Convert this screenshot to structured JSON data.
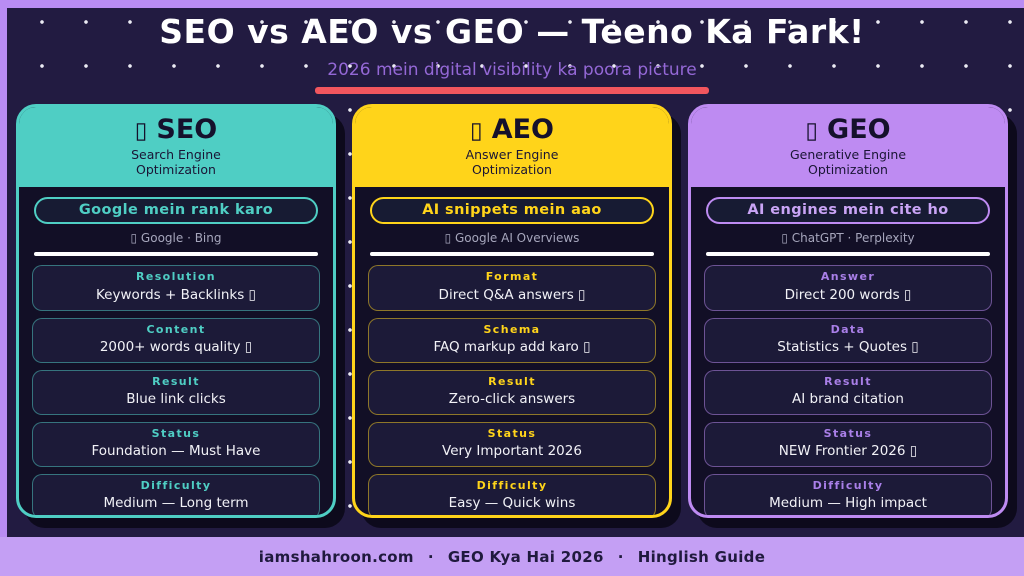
{
  "page": {
    "title": "SEO vs AEO vs GEO — Teeno Ka Fark!",
    "subtitle": "2026 mein digital visibility ka poora picture"
  },
  "footer": {
    "site": "iamshahroon.com",
    "sep": "·",
    "topic": "GEO Kya Hai 2026",
    "tag": "Hinglish Guide"
  },
  "colors": {
    "background": "#221B41",
    "card_body": "#120F26",
    "seo_accent": "#4FCEC4",
    "aeo_accent": "#FFD41A",
    "geo_accent": "#BE8BF2",
    "top_band": "#B98CF3",
    "footer_band": "#C49FF4",
    "subtitle_text": "#9468D6",
    "underline": "#F2565E"
  },
  "cards": [
    {
      "icon": "▯",
      "name": "SEO",
      "subtitle": "Search Engine Optimization",
      "pill": "Google mein rank karo",
      "engines": "▯ Google · Bing",
      "rows": [
        {
          "label": "Resolution",
          "value": "Keywords + Backlinks ▯"
        },
        {
          "label": "Content",
          "value": "2000+ words quality ▯"
        },
        {
          "label": "Result",
          "value": "Blue link clicks"
        },
        {
          "label": "Status",
          "value": "Foundation — Must Have"
        },
        {
          "label": "Difficulty",
          "value": "Medium — Long term"
        }
      ]
    },
    {
      "icon": "▯",
      "name": "AEO",
      "subtitle": "Answer Engine Optimization",
      "pill": "AI snippets mein aao",
      "engines": "▯ Google AI Overviews",
      "rows": [
        {
          "label": "Format",
          "value": "Direct Q&A answers ▯"
        },
        {
          "label": "Schema",
          "value": "FAQ markup add karo ▯"
        },
        {
          "label": "Result",
          "value": "Zero-click answers"
        },
        {
          "label": "Status",
          "value": "Very Important 2026"
        },
        {
          "label": "Difficulty",
          "value": "Easy — Quick wins"
        }
      ]
    },
    {
      "icon": "▯",
      "name": "GEO",
      "subtitle": "Generative Engine Optimization",
      "pill": "AI engines mein cite ho",
      "engines": "▯ ChatGPT · Perplexity",
      "rows": [
        {
          "label": "Answer",
          "value": "Direct 200 words ▯"
        },
        {
          "label": "Data",
          "value": "Statistics + Quotes ▯"
        },
        {
          "label": "Result",
          "value": "AI brand citation"
        },
        {
          "label": "Status",
          "value": "NEW Frontier 2026 ▯"
        },
        {
          "label": "Difficulty",
          "value": "Medium — High impact"
        }
      ]
    }
  ]
}
